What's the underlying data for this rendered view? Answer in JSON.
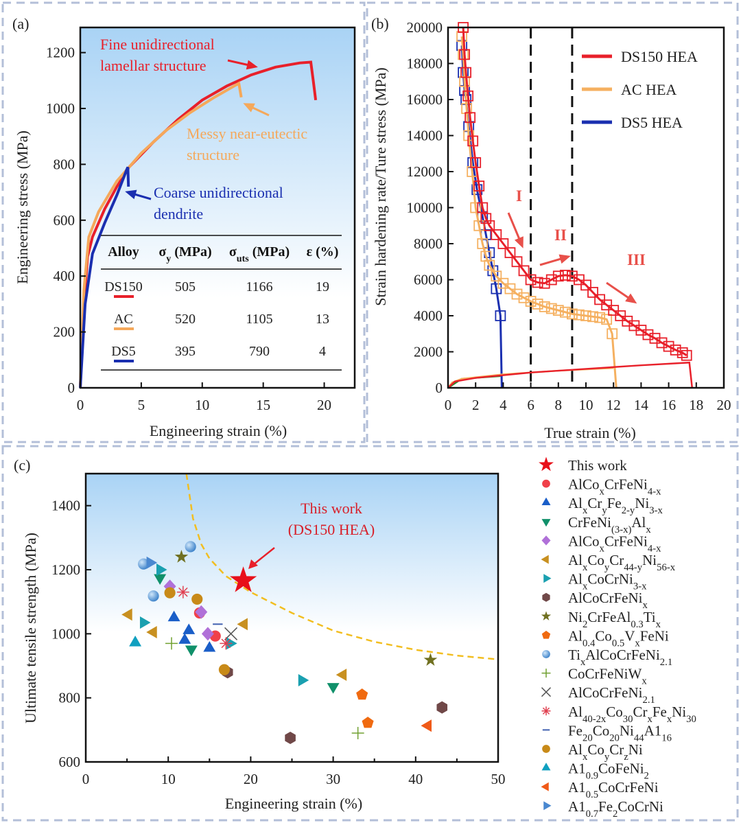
{
  "chart_data": [
    {
      "panel_label": "(a)",
      "type": "line",
      "xlabel": "Engineering strain (%)",
      "ylabel": "Engineering stress (MPa)",
      "xlim": [
        0,
        22.5
      ],
      "ylim": [
        0,
        1290
      ],
      "xticks": [
        0,
        5,
        10,
        15,
        20
      ],
      "yticks": [
        0,
        200,
        400,
        600,
        800,
        1000,
        1200
      ],
      "series": [
        {
          "name": "DS150",
          "color": "#e8202a",
          "points": [
            [
              0,
              0
            ],
            [
              0.3,
              300
            ],
            [
              0.6,
              470
            ],
            [
              1,
              540
            ],
            [
              2,
              640
            ],
            [
              3,
              720
            ],
            [
              4,
              790
            ],
            [
              6,
              880
            ],
            [
              8,
              960
            ],
            [
              10,
              1030
            ],
            [
              12,
              1080
            ],
            [
              14,
              1120
            ],
            [
              16,
              1148
            ],
            [
              18,
              1163
            ],
            [
              18.9,
              1166
            ],
            [
              19.1,
              1100
            ],
            [
              19.3,
              1030
            ]
          ]
        },
        {
          "name": "AC",
          "color": "#f5a85a",
          "points": [
            [
              0,
              0
            ],
            [
              0.3,
              350
            ],
            [
              0.7,
              540
            ],
            [
              1.5,
              630
            ],
            [
              3,
              740
            ],
            [
              5,
              840
            ],
            [
              7,
              920
            ],
            [
              9,
              985
            ],
            [
              11,
              1040
            ],
            [
              13,
              1090
            ],
            [
              13.2,
              1040
            ]
          ]
        },
        {
          "name": "DS5",
          "color": "#1a2fb0",
          "points": [
            [
              0,
              0
            ],
            [
              0.4,
              300
            ],
            [
              1,
              480
            ],
            [
              2,
              590
            ],
            [
              3,
              690
            ],
            [
              3.8,
              780
            ],
            [
              3.9,
              790
            ],
            [
              3.95,
              720
            ]
          ]
        }
      ],
      "annotations": [
        {
          "lines": [
            "Fine unidirectional",
            "lamellar structure"
          ],
          "color": "#e8202a"
        },
        {
          "lines": [
            "Messy near-eutectic",
            "structure"
          ],
          "color": "#f5a85a"
        },
        {
          "lines": [
            "Coarse unidirectional",
            "dendrite"
          ],
          "color": "#1a2fb0"
        }
      ],
      "table": {
        "headers": [
          "Alloy",
          "σ_{y} (MPa)",
          "σ_{uts} (MPa)",
          "ε (%)"
        ],
        "rows": [
          [
            "DS150",
            "505",
            "1166",
            "19"
          ],
          [
            "AC",
            "520",
            "1105",
            "13"
          ],
          [
            "DS5",
            "395",
            "790",
            "4"
          ]
        ]
      }
    },
    {
      "panel_label": "(b)",
      "type": "line",
      "xlabel": "True strain (%)",
      "ylabel": "Strain hardening rate/Ture stress (MPa)",
      "xlim": [
        0,
        20
      ],
      "ylim": [
        0,
        20000
      ],
      "xticks": [
        0,
        2,
        4,
        6,
        8,
        10,
        12,
        14,
        16,
        18,
        20
      ],
      "yticks": [
        0,
        2000,
        4000,
        6000,
        8000,
        10000,
        12000,
        14000,
        16000,
        18000,
        20000
      ],
      "vlines": [
        6,
        9
      ],
      "stages": [
        "I",
        "II",
        "III"
      ],
      "series": [
        {
          "name": "DS150 HEA",
          "color": "#e8202a",
          "hardening": [
            [
              1.1,
              20000
            ],
            [
              1.2,
              18500
            ],
            [
              1.3,
              17500
            ],
            [
              1.45,
              16200
            ],
            [
              1.6,
              15000
            ],
            [
              1.8,
              13700
            ],
            [
              2,
              12500
            ],
            [
              2.25,
              11200
            ],
            [
              2.5,
              10000
            ],
            [
              2.75,
              9400
            ],
            [
              3,
              9000
            ],
            [
              3.5,
              8500
            ],
            [
              4,
              8000
            ],
            [
              4.5,
              7500
            ],
            [
              5,
              7000
            ],
            [
              5.5,
              6500
            ],
            [
              6,
              6000
            ],
            [
              6.5,
              5850
            ],
            [
              7,
              5800
            ],
            [
              7.5,
              6000
            ],
            [
              8,
              6200
            ],
            [
              8.5,
              6250
            ],
            [
              9,
              6200
            ],
            [
              9.5,
              6000
            ],
            [
              10,
              5700
            ],
            [
              10.5,
              5300
            ],
            [
              11,
              4900
            ],
            [
              11.5,
              4600
            ],
            [
              12,
              4300
            ],
            [
              12.5,
              4000
            ],
            [
              13,
              3700
            ],
            [
              13.5,
              3450
            ],
            [
              14,
              3200
            ],
            [
              14.5,
              2950
            ],
            [
              15,
              2750
            ],
            [
              15.5,
              2500
            ],
            [
              16,
              2300
            ],
            [
              16.5,
              2100
            ],
            [
              17,
              1950
            ],
            [
              17.3,
              1800
            ]
          ],
          "stress": [
            [
              0,
              0
            ],
            [
              0.5,
              350
            ],
            [
              2,
              550
            ],
            [
              6,
              850
            ],
            [
              10,
              1050
            ],
            [
              14,
              1250
            ],
            [
              17.5,
              1400
            ],
            [
              17.7,
              0
            ]
          ]
        },
        {
          "name": "AC HEA",
          "color": "#f5b060",
          "hardening": [
            [
              1,
              19500
            ],
            [
              1.1,
              18500
            ],
            [
              1.2,
              17000
            ],
            [
              1.35,
              15500
            ],
            [
              1.5,
              14000
            ],
            [
              1.75,
              12000
            ],
            [
              2,
              10000
            ],
            [
              2.25,
              9000
            ],
            [
              2.5,
              8000
            ],
            [
              2.75,
              7300
            ],
            [
              3,
              6800
            ],
            [
              3.5,
              6200
            ],
            [
              4,
              5800
            ],
            [
              4.5,
              5500
            ],
            [
              5,
              5200
            ],
            [
              5.5,
              5000
            ],
            [
              6,
              4800
            ],
            [
              6.5,
              4650
            ],
            [
              7,
              4500
            ],
            [
              7.5,
              4400
            ],
            [
              8,
              4300
            ],
            [
              8.5,
              4200
            ],
            [
              9,
              4100
            ],
            [
              9.5,
              4050
            ],
            [
              10,
              4000
            ],
            [
              10.5,
              3950
            ],
            [
              11,
              3900
            ],
            [
              11.5,
              3800
            ],
            [
              11.9,
              3000
            ],
            [
              12.2,
              0
            ]
          ],
          "stress": [
            [
              0,
              0
            ],
            [
              0.3,
              300
            ],
            [
              1,
              500
            ],
            [
              4,
              750
            ],
            [
              8,
              950
            ],
            [
              12,
              1100
            ]
          ]
        },
        {
          "name": "DS5 HEA",
          "color": "#1a2fb0",
          "hardening": [
            [
              1,
              19000
            ],
            [
              1.1,
              17500
            ],
            [
              1.2,
              16500
            ],
            [
              1.3,
              16000
            ],
            [
              1.5,
              14500
            ],
            [
              1.8,
              12500
            ],
            [
              2.1,
              11000
            ],
            [
              2.5,
              9500
            ],
            [
              2.75,
              8500
            ],
            [
              3,
              7500
            ],
            [
              3.25,
              6500
            ],
            [
              3.5,
              5500
            ],
            [
              3.8,
              4000
            ],
            [
              3.9,
              0
            ]
          ],
          "stress": [
            [
              0,
              0
            ],
            [
              1,
              500
            ],
            [
              3.8,
              650
            ]
          ],
          "stress_color": "#2a8a2a"
        }
      ]
    },
    {
      "panel_label": "(c)",
      "type": "scatter",
      "xlabel": "Engineering strain (%)",
      "ylabel": "Ultimate tensile strength (MPa)",
      "xlim": [
        0,
        50
      ],
      "ylim": [
        600,
        1500
      ],
      "xticks": [
        0,
        10,
        20,
        30,
        40,
        50
      ],
      "yticks": [
        600,
        800,
        1000,
        1200,
        1400
      ],
      "annotation": [
        "This work",
        "(DS150 HEA)"
      ],
      "trend_line": [
        [
          12.2,
          1500
        ],
        [
          13,
          1360
        ],
        [
          14,
          1280
        ],
        [
          15,
          1235
        ],
        [
          17,
          1180
        ],
        [
          20,
          1130
        ],
        [
          25,
          1065
        ],
        [
          30,
          1010
        ],
        [
          35,
          975
        ],
        [
          40,
          950
        ],
        [
          45,
          932
        ],
        [
          50,
          920
        ]
      ],
      "series": [
        {
          "name": "This work",
          "marker": "star",
          "color": "#e8101a",
          "size": 2,
          "points": [
            [
              19.1,
              1166
            ]
          ]
        },
        {
          "name": "AlCo_{x}CrFeNi_{4-x}",
          "marker": "circle",
          "color": "#f0404a",
          "points": [
            [
              13.8,
              1065
            ],
            [
              15.7,
              993
            ]
          ]
        },
        {
          "name": "Al_{x}Cr_{y}Fe_{2-y}Ni_{3-x}",
          "marker": "tri-up",
          "color": "#1a5ec8",
          "points": [
            [
              10.7,
              1050
            ],
            [
              12.5,
              1010
            ],
            [
              12,
              980
            ],
            [
              15,
              955
            ]
          ]
        },
        {
          "name": "CrFeNi_{(3-x)}Al_{x}",
          "marker": "tri-down",
          "color": "#10906a",
          "points": [
            [
              9,
              1175
            ],
            [
              12.8,
              952
            ],
            [
              30,
              835
            ]
          ]
        },
        {
          "name": "AlCo_{x}CrFeNi_{4-x}",
          "marker": "diamond",
          "color": "#b070d8",
          "points": [
            [
              10.2,
              1148
            ],
            [
              14,
              1068
            ],
            [
              14.8,
              1000
            ]
          ]
        },
        {
          "name": "Al_{x}Co_{y}Cr_{44-y}Ni_{56-x}",
          "marker": "tri-left",
          "color": "#c89020",
          "points": [
            [
              5.2,
              1060
            ],
            [
              8.2,
              1005
            ],
            [
              19.2,
              1030
            ],
            [
              31.2,
              872
            ]
          ]
        },
        {
          "name": "Al_{x}CoCrNi_{3-x}",
          "marker": "tri-right",
          "color": "#1aa0b0",
          "points": [
            [
              7,
              1035
            ],
            [
              9,
              1200
            ],
            [
              17.5,
              970
            ],
            [
              26.2,
              855
            ]
          ]
        },
        {
          "name": "AlCoCrFeNi_{x}",
          "marker": "hexagon",
          "color": "#704848",
          "points": [
            [
              17.2,
              880
            ],
            [
              24.8,
              675
            ],
            [
              43.2,
              770
            ]
          ]
        },
        {
          "name": "Ni_{2}CrFeAl_{0.3}Ti_{x}",
          "marker": "star",
          "color": "#707020",
          "points": [
            [
              11.6,
              1240
            ],
            [
              41.8,
              918
            ]
          ]
        },
        {
          "name": "Al_{0.4}Co_{0.5}V_{x}FeNi",
          "marker": "pentagon",
          "color": "#f06a10",
          "points": [
            [
              33.5,
              810
            ],
            [
              34.2,
              722
            ]
          ]
        },
        {
          "name": "Ti_{x}AlCoCrFeNi_{2.1}",
          "marker": "sphere",
          "color": "#4a90d0",
          "points": [
            [
              7,
              1218
            ],
            [
              8.2,
              1118
            ],
            [
              12.7,
              1272
            ]
          ]
        },
        {
          "name": "CoCrFeNiW_{x}",
          "marker": "plus",
          "color": "#70a030",
          "points": [
            [
              10.4,
              970
            ],
            [
              33,
              690
            ]
          ]
        },
        {
          "name": "AlCoCrFeNi_{2.1}",
          "marker": "cross",
          "color": "#555555",
          "points": [
            [
              17.6,
              1000
            ]
          ]
        },
        {
          "name": "Al_{40-2x}Co_{30}Cr_{x}Fe_{x}Ni_{30}",
          "marker": "asterisk",
          "color": "#e04050",
          "points": [
            [
              11.8,
              1130
            ],
            [
              17,
              970
            ]
          ]
        },
        {
          "name": "Fe_{20}Co_{20}Ni_{44}A1_{16}",
          "marker": "minus",
          "color": "#4060b0",
          "points": [
            [
              16,
              1030
            ]
          ]
        },
        {
          "name": "Al_{x}Co_{y}Cr_{z}Ni",
          "marker": "circle",
          "color": "#c88a18",
          "points": [
            [
              10.2,
              1128
            ],
            [
              13.5,
              1108
            ],
            [
              16.8,
              888
            ]
          ]
        },
        {
          "name": "A1_{0.9}CoFeNi_{2}",
          "marker": "tri-up",
          "color": "#10a0c0",
          "points": [
            [
              6,
              972
            ]
          ]
        },
        {
          "name": "A1_{0.5}CoCrFeNi",
          "marker": "tri-left",
          "color": "#f05a18",
          "points": [
            [
              41.5,
              713
            ]
          ]
        },
        {
          "name": "A1_{0.7}Fe_{2}CoCrNi",
          "marker": "tri-right",
          "color": "#4a88d0",
          "points": [
            [
              7.8,
              1222
            ]
          ]
        }
      ]
    }
  ]
}
